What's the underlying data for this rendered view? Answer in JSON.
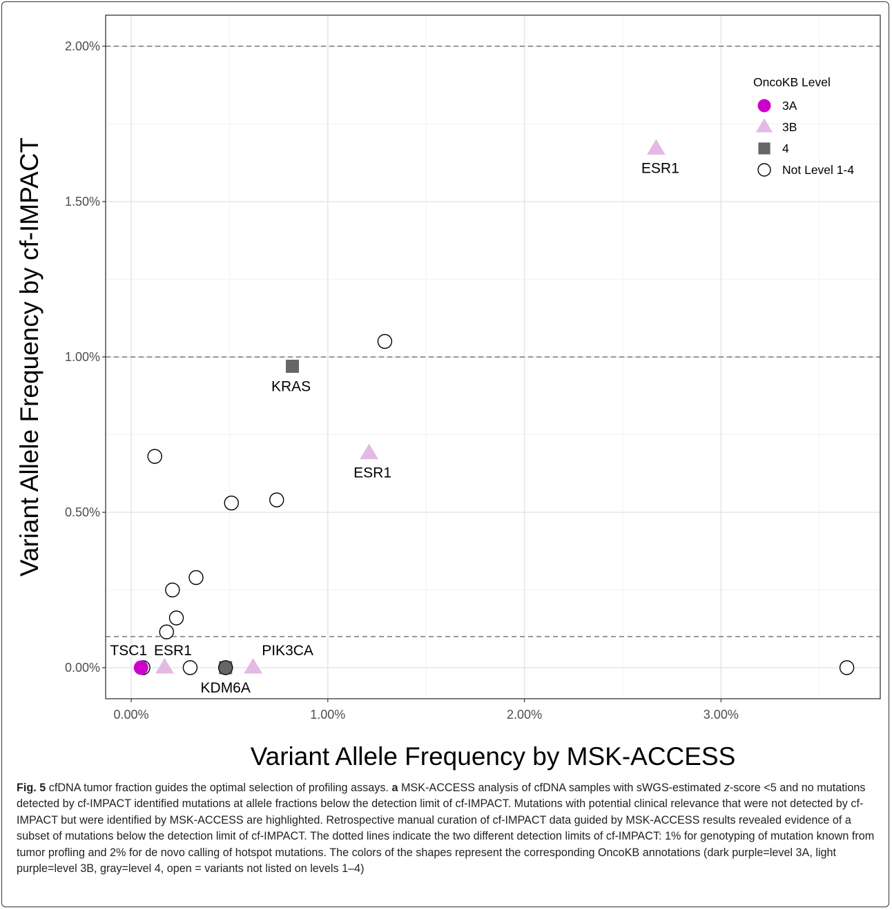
{
  "chart_data": {
    "type": "scatter",
    "title": "",
    "xlabel": "Variant Allele Frequency by MSK-ACCESS",
    "ylabel": "Variant Allele Frequency by cf-IMPACT",
    "xlim": [
      -0.0013,
      0.0381
    ],
    "ylim": [
      -0.001,
      0.021
    ],
    "x_ticks": [
      0,
      0.01,
      0.02,
      0.03
    ],
    "x_tick_labels": [
      "0.00%",
      "1.00%",
      "2.00%",
      "3.00%"
    ],
    "y_ticks": [
      0,
      0.005,
      0.01,
      0.015,
      0.02
    ],
    "y_tick_labels": [
      "0.00%",
      "0.50%",
      "1.00%",
      "1.50%",
      "2.00%"
    ],
    "x_minor_ticks": [
      0.005,
      0.015,
      0.025,
      0.035
    ],
    "y_minor_ticks": [
      0.0025,
      0.0075,
      0.0125,
      0.0175
    ],
    "grid": true,
    "reference_lines_y": [
      0.001,
      0.01,
      0.02
    ],
    "legend": {
      "title": "OncoKB Level",
      "placement": "top-right",
      "entries": [
        {
          "label": "3A",
          "shape": "circle",
          "fill": "#cc00cc",
          "stroke": "#cc00cc"
        },
        {
          "label": "3B",
          "shape": "triangle",
          "fill": "#e4b9e4",
          "stroke": "#e4b9e4"
        },
        {
          "label": "4",
          "shape": "square",
          "fill": "#666666",
          "stroke": "#666666"
        },
        {
          "label": "Not Level 1-4",
          "shape": "open-circle",
          "fill": "#ffffff",
          "stroke": "#000000"
        }
      ]
    },
    "series": [
      {
        "name": "3A",
        "points": [
          {
            "x": 0.0005,
            "y": 0.0,
            "label": "TSC1"
          }
        ]
      },
      {
        "name": "3B",
        "points": [
          {
            "x": 0.0017,
            "y": 0.0,
            "label": "ESR1"
          },
          {
            "x": 0.0062,
            "y": 0.0,
            "label": "PIK3CA"
          },
          {
            "x": 0.0121,
            "y": 0.0069,
            "label": "ESR1"
          },
          {
            "x": 0.0267,
            "y": 0.0167,
            "label": "ESR1"
          }
        ]
      },
      {
        "name": "4",
        "points": [
          {
            "x": 0.0048,
            "y": 0.0,
            "label": "KDM6A"
          },
          {
            "x": 0.0082,
            "y": 0.0097,
            "label": "KRAS"
          }
        ]
      },
      {
        "name": "Not Level 1-4",
        "points": [
          {
            "x": 0.0006,
            "y": 0.0
          },
          {
            "x": 0.003,
            "y": 0.0
          },
          {
            "x": 0.0048,
            "y": 0.0
          },
          {
            "x": 0.0364,
            "y": 0.0
          },
          {
            "x": 0.0018,
            "y": 0.00115
          },
          {
            "x": 0.0023,
            "y": 0.0016
          },
          {
            "x": 0.0021,
            "y": 0.0025
          },
          {
            "x": 0.0033,
            "y": 0.0029
          },
          {
            "x": 0.0012,
            "y": 0.0068
          },
          {
            "x": 0.0051,
            "y": 0.0053
          },
          {
            "x": 0.0074,
            "y": 0.0054
          },
          {
            "x": 0.0129,
            "y": 0.0105
          }
        ]
      }
    ]
  },
  "caption": {
    "fig_label": "Fig. 5",
    "lead": " cfDNA tumor fraction guides the optimal selection of profiling assays. ",
    "panel_letter": "a",
    "part1": " MSK-ACCESS analysis of cfDNA samples with sWGS-estimated ",
    "z": "z",
    "part2": "-score <5 and no mutations detected by cf-IMPACT identified mutations at allele fractions below the detection limit of cf-IMPACT. Mutations with potential clinical relevance that were not detected by cf-IMPACT but were identified by MSK-ACCESS are highlighted. Retrospective manual curation of cf-IMPACT data guided by MSK-ACCESS results revealed evidence of a subset of mutations below the detection limit of cf-IMPACT. The dotted lines indicate the two different detection limits of cf-IMPACT: 1% for genotyping of mutation known from tumor profling and 2% for de novo calling of hotspot mutations. The colors of the shapes represent the corresponding OncoKB annotations (dark purple=level 3A, light purple=level 3B, gray=level 4, open = variants not listed on levels 1–4)"
  }
}
